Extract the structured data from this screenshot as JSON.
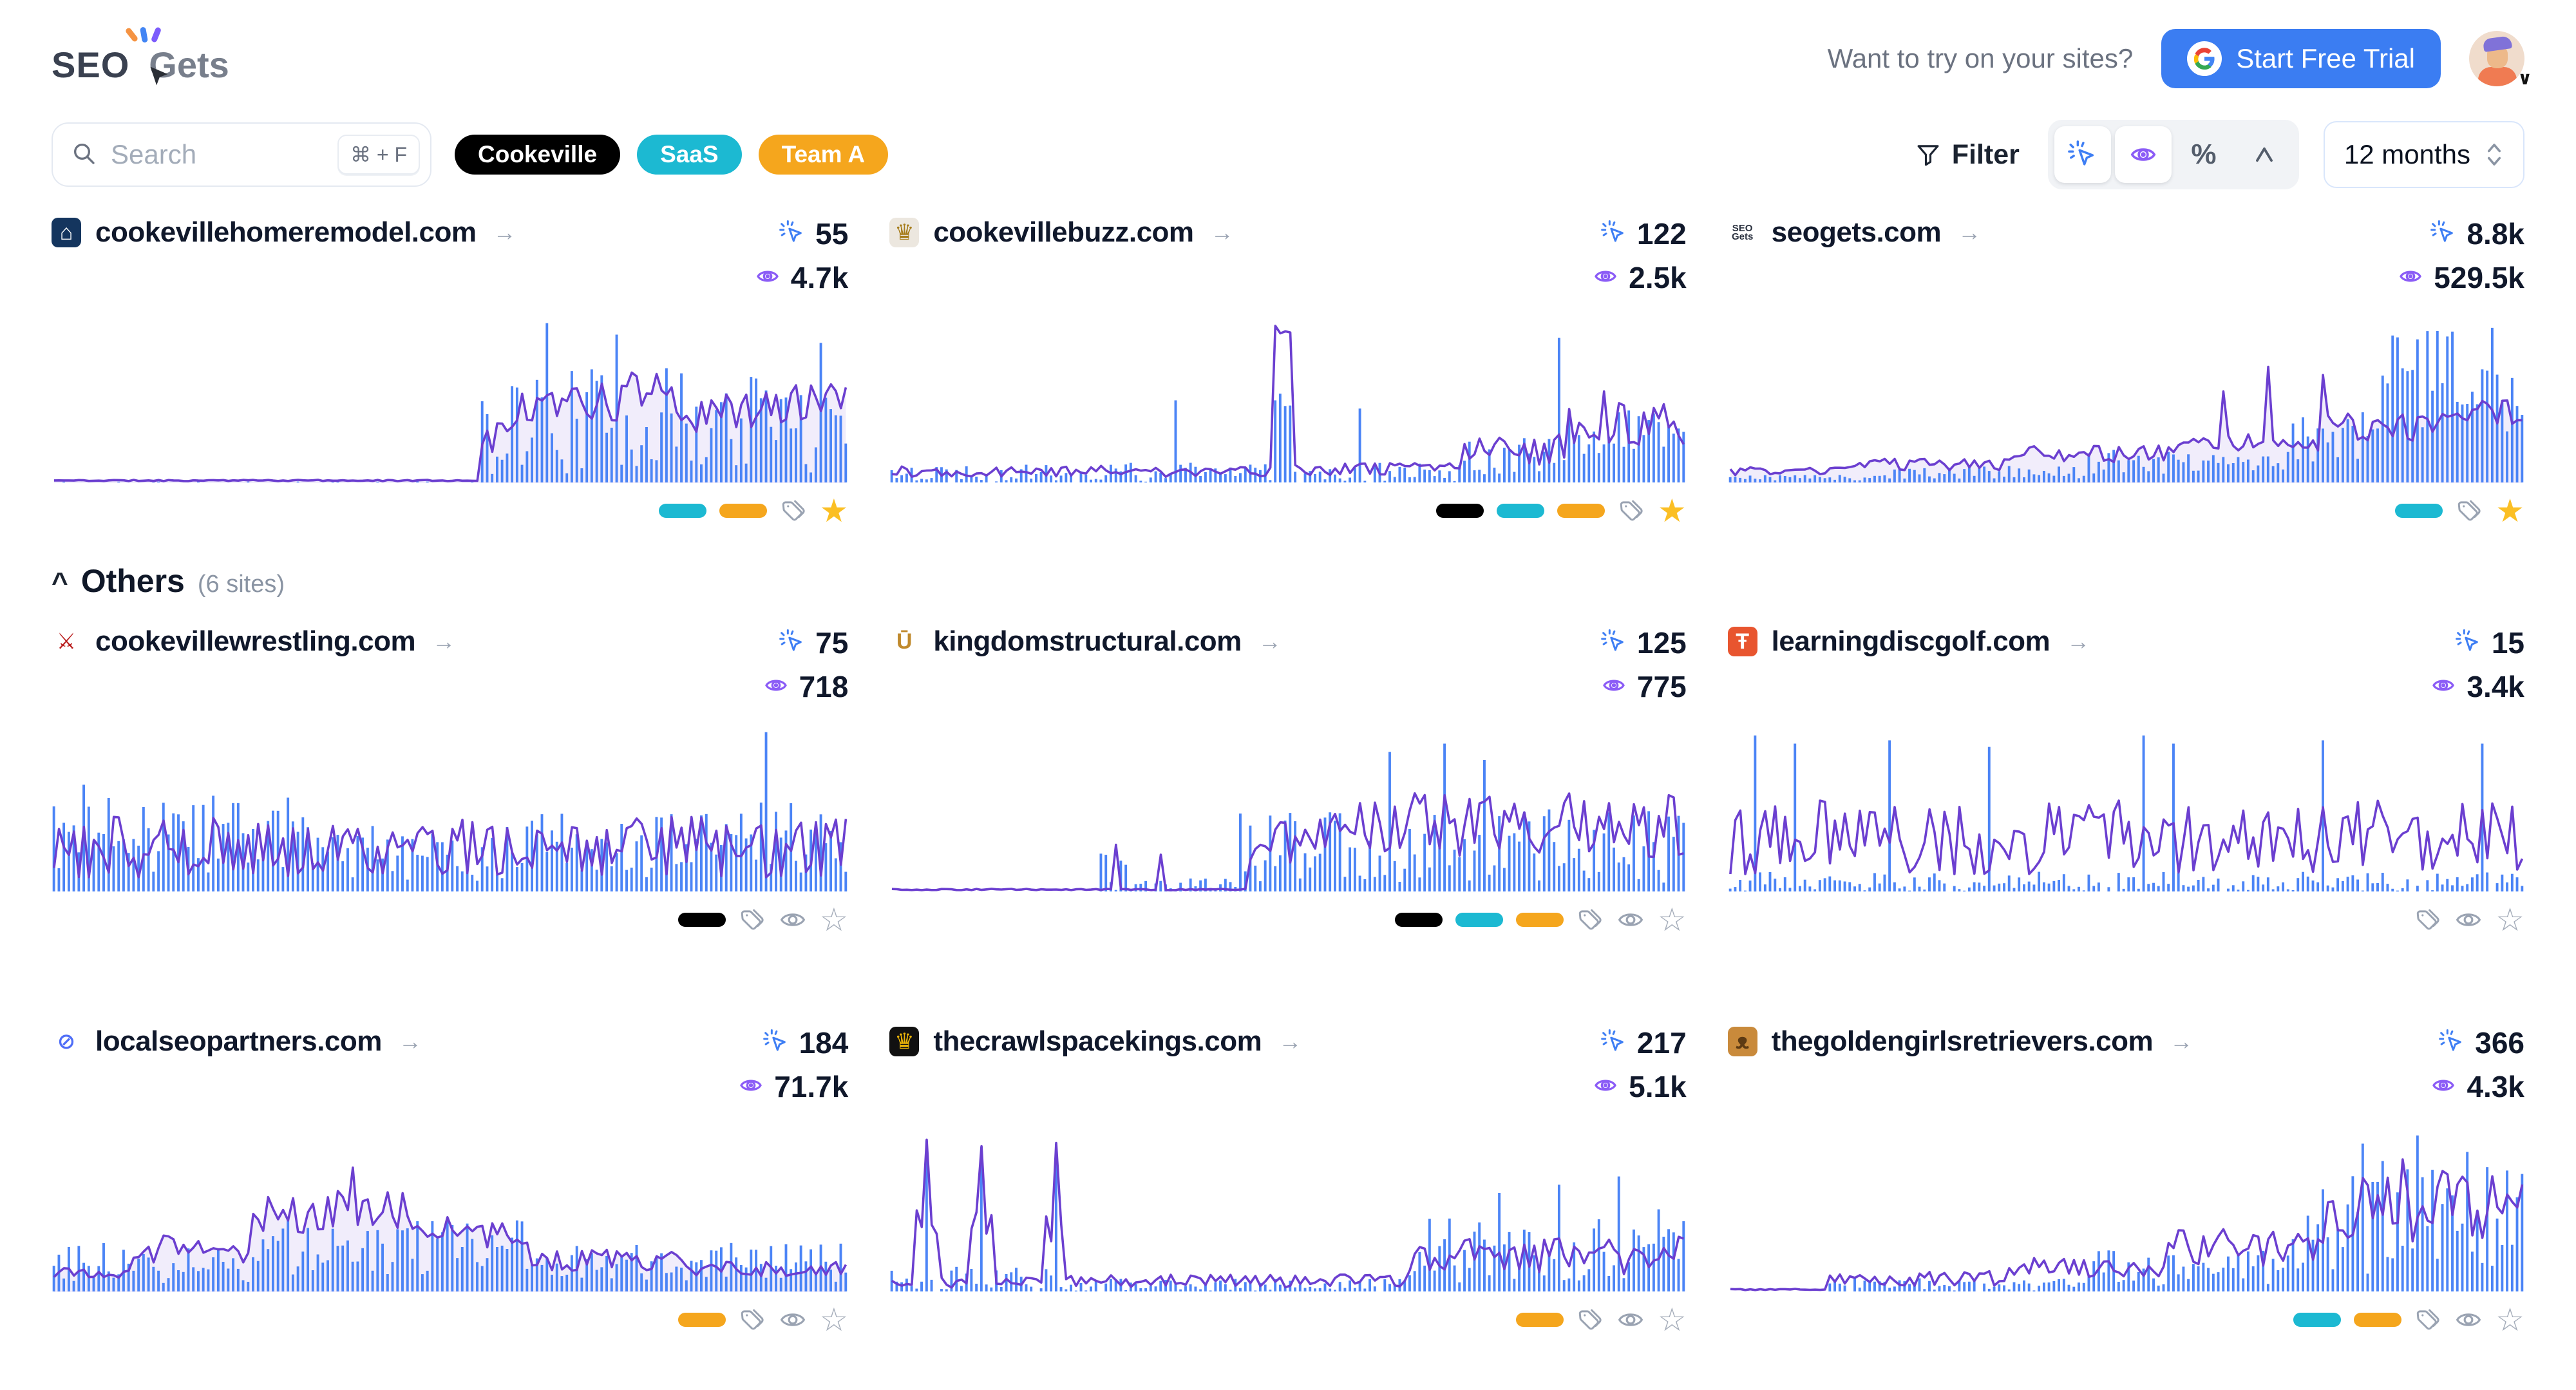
{
  "header": {
    "logo_seo": "SEO",
    "logo_gets": "Gets",
    "cta_prompt": "Want to try on your sites?",
    "trial_button": "Start Free Trial"
  },
  "toolbar": {
    "search_placeholder": "Search",
    "search_shortcut": "⌘ + F",
    "tags": [
      {
        "label": "Cookeville",
        "color": "#000000"
      },
      {
        "label": "SaaS",
        "color": "#1cb9d2"
      },
      {
        "label": "Team A",
        "color": "#f5a61d"
      }
    ],
    "filter_label": "Filter",
    "range_selector": "12 months"
  },
  "others": {
    "label": "Others",
    "count": "(6 sites)",
    "chevron": "^"
  },
  "glyphs": {
    "go_arrow": "→",
    "star_filled": "★",
    "star_outline": "☆",
    "percent": "%",
    "avatar_chevron": "∨"
  },
  "colors": {
    "clicks_blue": "#3e7ef4",
    "views_purple": "#8b5cf6",
    "line_purple": "#6b3fd0",
    "bar_blue": "#4b84f6",
    "fill_purple": "rgba(120,80,220,0.10)",
    "pill_cyan": "#1cb9d2",
    "pill_orange": "#f5a61d",
    "pill_black": "#000000"
  },
  "sites": [
    {
      "domain": "cookevillehomeremodel.com",
      "clicks": "55",
      "views": "4.7k",
      "starred": true,
      "show_eye": false,
      "favicon": {
        "bg": "#14355e",
        "color": "#ffffff",
        "glyph": "⌂"
      },
      "pills": [
        "#1cb9d2",
        "#f5a61d"
      ],
      "chart": {
        "seed": 11,
        "fill": true,
        "line": [
          [
            0,
            0.54,
            0.004,
            0.012
          ],
          [
            0.54,
            0.58,
            0.15,
            0.4
          ],
          [
            0.58,
            0.72,
            0.35,
            0.6
          ],
          [
            0.72,
            0.78,
            0.45,
            0.68
          ],
          [
            0.78,
            0.9,
            0.3,
            0.55
          ],
          [
            0.9,
            1,
            0.35,
            0.6
          ]
        ],
        "bars": [
          [
            0,
            0.54,
            0,
            0.006
          ],
          [
            0.54,
            1,
            0.05,
            0.7
          ]
        ],
        "spikes": [
          [
            0.62,
            0.97,
            "bar"
          ],
          [
            0.71,
            0.9,
            "bar"
          ],
          [
            0.97,
            0.85,
            "bar"
          ]
        ]
      }
    },
    {
      "domain": "cookevillebuzz.com",
      "clicks": "122",
      "views": "2.5k",
      "starred": true,
      "show_eye": false,
      "favicon": {
        "bg": "#ece7df",
        "color": "#a67c1a",
        "glyph": "♛"
      },
      "pills": [
        "#000000",
        "#1cb9d2",
        "#f5a61d"
      ],
      "chart": {
        "seed": 22,
        "fill": false,
        "line": [
          [
            0,
            0.48,
            0.03,
            0.1
          ],
          [
            0.48,
            0.505,
            0.9,
            0.95
          ],
          [
            0.505,
            0.72,
            0.04,
            0.12
          ],
          [
            0.72,
            0.85,
            0.1,
            0.3
          ],
          [
            0.85,
            1,
            0.2,
            0.5
          ]
        ],
        "bars": [
          [
            0,
            0.48,
            0,
            0.12
          ],
          [
            0.48,
            0.505,
            0.45,
            0.6
          ],
          [
            0.505,
            0.72,
            0,
            0.12
          ],
          [
            0.72,
            0.85,
            0.05,
            0.3
          ],
          [
            0.85,
            1,
            0.1,
            0.45
          ]
        ],
        "spikes": [
          [
            0.36,
            0.5,
            "bar"
          ],
          [
            0.59,
            0.45,
            "bar"
          ],
          [
            0.84,
            0.88,
            "bar"
          ],
          [
            0.9,
            0.55,
            "line"
          ]
        ]
      }
    },
    {
      "domain": "seogets.com",
      "clicks": "8.8k",
      "views": "529.5k",
      "starred": true,
      "show_eye": false,
      "favicon": {
        "bg": "#ffffff",
        "color": "#2b3240",
        "lines": [
          "SEO",
          "Gets"
        ]
      },
      "pills": [
        "#1cb9d2"
      ],
      "chart": {
        "seed": 33,
        "fill": true,
        "line": [
          [
            0,
            0.15,
            0.04,
            0.09
          ],
          [
            0.15,
            0.35,
            0.07,
            0.14
          ],
          [
            0.35,
            0.55,
            0.12,
            0.22
          ],
          [
            0.55,
            0.75,
            0.18,
            0.3
          ],
          [
            0.75,
            0.9,
            0.25,
            0.42
          ],
          [
            0.9,
            1,
            0.35,
            0.5
          ]
        ],
        "bars": [
          [
            0,
            0.2,
            0.01,
            0.05
          ],
          [
            0.2,
            0.45,
            0.02,
            0.1
          ],
          [
            0.45,
            0.7,
            0.05,
            0.2
          ],
          [
            0.7,
            0.82,
            0.1,
            0.45
          ],
          [
            0.82,
            1,
            0.3,
            0.95
          ]
        ],
        "spikes": [
          [
            0.62,
            0.55,
            "line"
          ],
          [
            0.68,
            0.7,
            "line"
          ],
          [
            0.75,
            0.65,
            "line"
          ]
        ]
      }
    },
    {
      "domain": "cookevillewrestling.com",
      "clicks": "75",
      "views": "718",
      "starred": false,
      "show_eye": true,
      "favicon": {
        "bg": "#ffffff",
        "color": "#b91c1c",
        "glyph": "⚔"
      },
      "pills": [
        "#000000"
      ],
      "chart": {
        "seed": 44,
        "fill": false,
        "line": [
          [
            0,
            1,
            0.08,
            0.45
          ]
        ],
        "bars": [
          [
            0,
            0.35,
            0.1,
            0.6
          ],
          [
            0.35,
            0.6,
            0.05,
            0.4
          ],
          [
            0.6,
            0.85,
            0.08,
            0.5
          ],
          [
            0.85,
            1,
            0.1,
            0.55
          ]
        ],
        "spikes": [
          [
            0.9,
            0.97,
            "bar"
          ],
          [
            0.04,
            0.65,
            "bar"
          ]
        ]
      }
    },
    {
      "domain": "kingdomstructural.com",
      "clicks": "125",
      "views": "775",
      "starred": false,
      "show_eye": true,
      "favicon": {
        "bg": "#ffffff",
        "color": "#c08a2d",
        "glyph": "Ū"
      },
      "pills": [
        "#000000",
        "#1cb9d2",
        "#f5a61d"
      ],
      "chart": {
        "seed": 55,
        "fill": false,
        "line": [
          [
            0,
            0.45,
            0.004,
            0.012
          ],
          [
            0.45,
            0.55,
            0.15,
            0.45
          ],
          [
            0.55,
            1,
            0.2,
            0.6
          ]
        ],
        "bars": [
          [
            0,
            0.26,
            0,
            0.004
          ],
          [
            0.26,
            0.3,
            0,
            0.25
          ],
          [
            0.3,
            0.44,
            0,
            0.08
          ],
          [
            0.44,
            1,
            0.05,
            0.5
          ]
        ],
        "spikes": [
          [
            0.28,
            0.28,
            "line"
          ],
          [
            0.34,
            0.22,
            "line"
          ],
          [
            0.63,
            0.85,
            "bar"
          ],
          [
            0.7,
            0.9,
            "bar"
          ],
          [
            0.75,
            0.8,
            "bar"
          ]
        ]
      }
    },
    {
      "domain": "learningdiscgolf.com",
      "clicks": "15",
      "views": "3.4k",
      "starred": false,
      "show_eye": true,
      "favicon": {
        "bg": "#e8552f",
        "color": "#ffffff",
        "glyph": "Ŧ"
      },
      "pills": [],
      "chart": {
        "seed": 66,
        "fill": false,
        "line": [
          [
            0,
            1,
            0.1,
            0.55
          ]
        ],
        "bars": [
          [
            0,
            1,
            0,
            0.12
          ]
        ],
        "spikes": [
          [
            0.03,
            0.95,
            "bar"
          ],
          [
            0.08,
            0.9,
            "bar"
          ],
          [
            0.2,
            0.92,
            "bar"
          ],
          [
            0.33,
            0.88,
            "bar"
          ],
          [
            0.52,
            0.95,
            "bar"
          ],
          [
            0.56,
            0.9,
            "bar"
          ],
          [
            0.75,
            0.92,
            "bar"
          ],
          [
            0.95,
            0.9,
            "bar"
          ]
        ]
      }
    },
    {
      "domain": "localseopartners.com",
      "clicks": "184",
      "views": "71.7k",
      "starred": false,
      "show_eye": true,
      "favicon": {
        "bg": "#ffffff",
        "color": "#4f6ef7",
        "glyph": "⊘"
      },
      "pills": [
        "#f5a61d"
      ],
      "chart": {
        "seed": 77,
        "fill": true,
        "line": [
          [
            0,
            0.1,
            0.08,
            0.15
          ],
          [
            0.1,
            0.25,
            0.15,
            0.35
          ],
          [
            0.25,
            0.45,
            0.35,
            0.62
          ],
          [
            0.45,
            0.6,
            0.25,
            0.45
          ],
          [
            0.6,
            0.8,
            0.12,
            0.25
          ],
          [
            0.8,
            1,
            0.08,
            0.18
          ]
        ],
        "bars": [
          [
            0,
            0.25,
            0.05,
            0.3
          ],
          [
            0.25,
            0.6,
            0.1,
            0.45
          ],
          [
            0.6,
            1,
            0.05,
            0.3
          ]
        ],
        "spikes": [
          [
            0.38,
            0.75,
            "line"
          ]
        ]
      }
    },
    {
      "domain": "thecrawlspacekings.com",
      "clicks": "217",
      "views": "5.1k",
      "starred": false,
      "show_eye": true,
      "favicon": {
        "bg": "#111111",
        "color": "#eab308",
        "glyph": "♛"
      },
      "pills": [
        "#f5a61d"
      ],
      "chart": {
        "seed": 88,
        "fill": false,
        "line": [
          [
            0,
            0.03,
            0.02,
            0.08
          ],
          [
            0.03,
            0.06,
            0.3,
            0.5
          ],
          [
            0.06,
            0.1,
            0.02,
            0.08
          ],
          [
            0.1,
            0.13,
            0.3,
            0.5
          ],
          [
            0.13,
            0.19,
            0.02,
            0.08
          ],
          [
            0.19,
            0.22,
            0.3,
            0.5
          ],
          [
            0.22,
            0.65,
            0.02,
            0.1
          ],
          [
            0.65,
            1,
            0.1,
            0.35
          ]
        ],
        "bars": [
          [
            0,
            0.22,
            0,
            0.15
          ],
          [
            0.22,
            0.65,
            0,
            0.08
          ],
          [
            0.65,
            1,
            0.05,
            0.45
          ]
        ],
        "spikes": [
          [
            0.045,
            0.92,
            "both"
          ],
          [
            0.115,
            0.88,
            "both"
          ],
          [
            0.205,
            0.9,
            "both"
          ],
          [
            0.77,
            0.6,
            "bar"
          ],
          [
            0.84,
            0.65,
            "bar"
          ],
          [
            0.92,
            0.7,
            "bar"
          ],
          [
            0.97,
            0.5,
            "bar"
          ]
        ]
      }
    },
    {
      "domain": "thegoldengirlsretrievers.com",
      "clicks": "366",
      "views": "4.3k",
      "starred": false,
      "show_eye": true,
      "favicon": {
        "bg": "#c98a3b",
        "color": "#5d3a13",
        "glyph": "ᴥ"
      },
      "pills": [
        "#1cb9d2",
        "#f5a61d"
      ],
      "chart": {
        "seed": 99,
        "fill": false,
        "line": [
          [
            0,
            0.12,
            0.004,
            0.012
          ],
          [
            0.12,
            0.35,
            0.03,
            0.12
          ],
          [
            0.35,
            0.55,
            0.08,
            0.2
          ],
          [
            0.55,
            0.75,
            0.15,
            0.4
          ],
          [
            0.75,
            1,
            0.3,
            0.75
          ]
        ],
        "bars": [
          [
            0,
            0.12,
            0,
            0.004
          ],
          [
            0.12,
            0.45,
            0,
            0.08
          ],
          [
            0.45,
            0.7,
            0.03,
            0.25
          ],
          [
            0.7,
            1,
            0.1,
            0.8
          ]
        ],
        "spikes": [
          [
            0.8,
            0.9,
            "bar"
          ],
          [
            0.87,
            0.95,
            "bar"
          ],
          [
            0.93,
            0.85,
            "bar"
          ],
          [
            0.85,
            0.8,
            "line"
          ]
        ]
      }
    }
  ]
}
